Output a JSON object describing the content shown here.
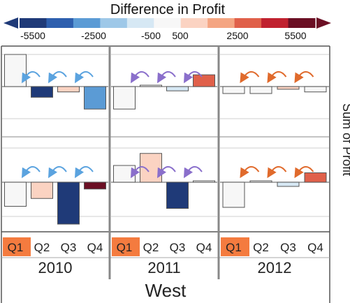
{
  "chart_data": {
    "type": "bar",
    "legend": {
      "title": "Difference in Profit",
      "ticks": [
        "-5500",
        "-2500",
        "-500",
        "500",
        "2500",
        "5500"
      ],
      "colors": [
        "#1f3a78",
        "#2e5fae",
        "#5b9bd5",
        "#9ec8e8",
        "#d6e8f4",
        "#f7f7f7",
        "#fbd3c2",
        "#f4a582",
        "#e0604a",
        "#c0212f",
        "#6b0f24"
      ]
    },
    "y_axis_label": "Sum of Profit",
    "region": "West",
    "years": [
      "2010",
      "2011",
      "2012"
    ],
    "quarters": [
      "Q1",
      "Q2",
      "Q3",
      "Q4"
    ],
    "highlight_quarter": "Q1",
    "highlight_color": "#f47b3f",
    "rows": [
      {
        "panels": [
          {
            "year": "2010",
            "values": [
              6000,
              -2000,
              -1000,
              -4200
            ],
            "colors": [
              "#f7f7f7",
              "#1f3a78",
              "#fbd3c2",
              "#5b9bd5"
            ],
            "arrow_color": "#5ba3df"
          },
          {
            "year": "2011",
            "values": [
              -4200,
              0,
              -800,
              2200
            ],
            "colors": [
              "#f7f7f7",
              "#f7f7f7",
              "#d6e8f4",
              "#e0604a"
            ],
            "arrow_color": "#8a6fcb"
          },
          {
            "year": "2012",
            "values": [
              -1300,
              -1300,
              -500,
              -1000
            ],
            "colors": [
              "#f7f7f7",
              "#f7f7f7",
              "#fbd3c2",
              "#f7f7f7"
            ],
            "arrow_color": "#e06a2c"
          }
        ]
      },
      {
        "panels": [
          {
            "year": "2010",
            "values": [
              -4600,
              -3100,
              -8000,
              -1300
            ],
            "colors": [
              "#f7f7f7",
              "#fbd3c2",
              "#1f3a78",
              "#6b0f24"
            ],
            "arrow_color": "#5ba3df"
          },
          {
            "year": "2011",
            "values": [
              3200,
              5500,
              -5000,
              0
            ],
            "colors": [
              "#f7f7f7",
              "#fbd3c2",
              "#1f3a78",
              "#f7f7f7"
            ],
            "arrow_color": "#8a6fcb"
          },
          {
            "year": "2012",
            "values": [
              -4800,
              0,
              -800,
              1800
            ],
            "colors": [
              "#f7f7f7",
              "#f7f7f7",
              "#d6e8f4",
              "#e0604a"
            ],
            "arrow_color": "#e06a2c"
          }
        ]
      }
    ]
  }
}
